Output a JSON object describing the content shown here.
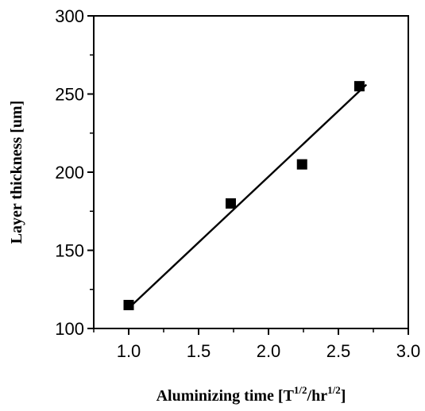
{
  "chart_data": {
    "type": "scatter",
    "title": "",
    "xlabel": {
      "main": "Aluminizing time [T",
      "sup1": "1/2",
      "mid": "/hr",
      "sup2": "1/2",
      "end": "]"
    },
    "ylabel": "Layer thickness [um]",
    "xlim": [
      0.75,
      3.0
    ],
    "ylim": [
      100,
      300
    ],
    "xticks": [
      "1.0",
      "1.5",
      "2.0",
      "2.5",
      "3.0"
    ],
    "xtick_values": [
      1.0,
      1.5,
      2.0,
      2.5,
      3.0
    ],
    "yticks": [
      "100",
      "150",
      "200",
      "250",
      "300"
    ],
    "ytick_values": [
      100,
      150,
      200,
      250,
      300
    ],
    "series": [
      {
        "marker": "square",
        "color": "#000000",
        "x": [
          1.0,
          1.73,
          2.24,
          2.65
        ],
        "y": [
          115,
          180,
          205,
          255
        ]
      }
    ],
    "fit_line": {
      "x": [
        1.0,
        2.7
      ],
      "y": [
        113,
        256
      ]
    },
    "grid": false,
    "legend": "none"
  }
}
